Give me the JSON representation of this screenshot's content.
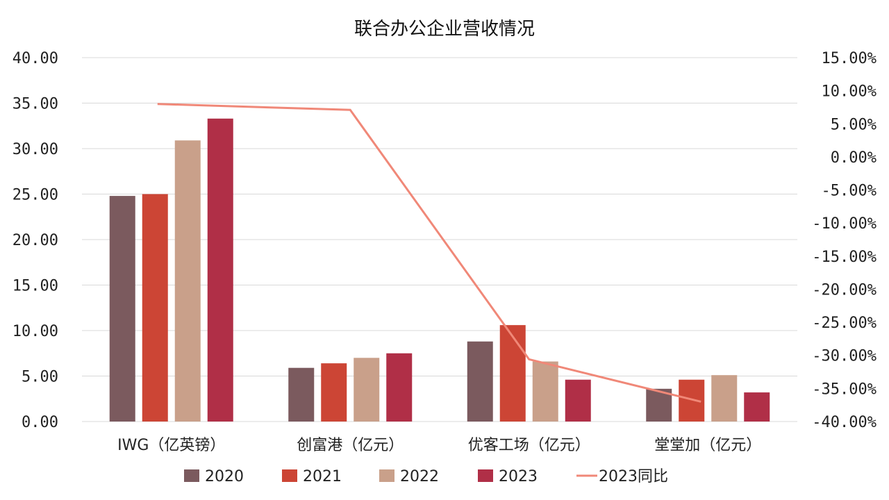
{
  "chart_data": {
    "type": "bar",
    "title": "联合办公企业营收情况",
    "categories": [
      "IWG（亿英镑）",
      "创富港（亿元）",
      "优客工场（亿元）",
      "堂堂加（亿元）"
    ],
    "series": [
      {
        "name": "2020",
        "type": "bar",
        "axis": "left",
        "color": "#7b5a5e",
        "values": [
          24.8,
          5.9,
          8.8,
          3.6
        ]
      },
      {
        "name": "2021",
        "type": "bar",
        "axis": "left",
        "color": "#cc4535",
        "values": [
          25.0,
          6.4,
          10.6,
          4.6
        ]
      },
      {
        "name": "2022",
        "type": "bar",
        "axis": "left",
        "color": "#c9a08a",
        "values": [
          30.9,
          7.0,
          6.6,
          5.1
        ]
      },
      {
        "name": "2023",
        "type": "bar",
        "axis": "left",
        "color": "#b02f47",
        "values": [
          33.3,
          7.5,
          4.6,
          3.2
        ]
      },
      {
        "name": "2023同比",
        "type": "line",
        "axis": "right",
        "color": "#f08878",
        "values": [
          8.0,
          7.1,
          -30.6,
          -37.0
        ]
      }
    ],
    "y_left": {
      "range": [
        0,
        40
      ],
      "ticks": [
        "0.00",
        "5.00",
        "10.00",
        "15.00",
        "20.00",
        "25.00",
        "30.00",
        "35.00",
        "40.00"
      ]
    },
    "y_right": {
      "range": [
        -40,
        15
      ],
      "ticks": [
        "-40.00%",
        "-35.00%",
        "-30.00%",
        "-25.00%",
        "-20.00%",
        "-15.00%",
        "-10.00%",
        "-5.00%",
        "0.00%",
        "5.00%",
        "10.00%",
        "15.00%"
      ]
    },
    "grid": true,
    "legend_position": "bottom"
  }
}
